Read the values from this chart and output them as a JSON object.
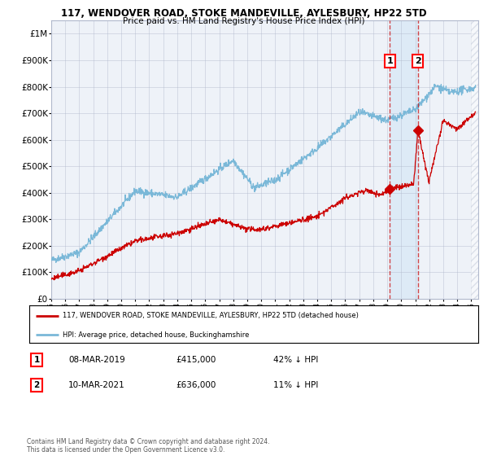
{
  "title": "117, WENDOVER ROAD, STOKE MANDEVILLE, AYLESBURY, HP22 5TD",
  "subtitle": "Price paid vs. HM Land Registry's House Price Index (HPI)",
  "ylabel_vals": [
    "£0",
    "£100K",
    "£200K",
    "£300K",
    "£400K",
    "£500K",
    "£600K",
    "£700K",
    "£800K",
    "£900K",
    "£1M"
  ],
  "yticks": [
    0,
    100000,
    200000,
    300000,
    400000,
    500000,
    600000,
    700000,
    800000,
    900000,
    1000000
  ],
  "ylim": [
    0,
    1050000
  ],
  "xlim_start": 1995.0,
  "xlim_end": 2025.5,
  "hpi_color": "#7ab8d8",
  "price_color": "#cc0000",
  "sale1_date": 2019.18,
  "sale1_price": 415000,
  "sale2_date": 2021.19,
  "sale2_price": 636000,
  "legend_label1": "117, WENDOVER ROAD, STOKE MANDEVILLE, AYLESBURY, HP22 5TD (detached house)",
  "legend_label2": "HPI: Average price, detached house, Buckinghamshire",
  "footnote": "Contains HM Land Registry data © Crown copyright and database right 2024.\nThis data is licensed under the Open Government Licence v3.0.",
  "bg_color": "#eef2f8",
  "highlight_color": "#ddeaf6",
  "grid_color": "#b0b8cc",
  "hatch_color": "#c0c8d8"
}
